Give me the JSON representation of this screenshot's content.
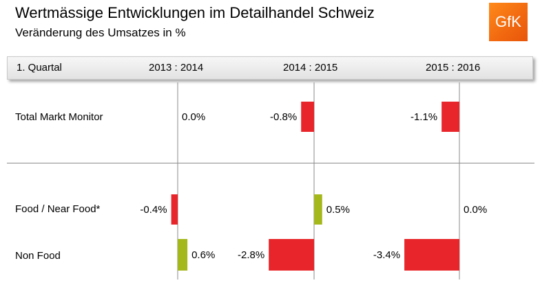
{
  "title": "Wertmässige Entwicklungen im Detailhandel Schweiz",
  "subtitle": "Veränderung des Umsatzes in %",
  "logo": {
    "text": "GfK",
    "color": "#f26a10"
  },
  "header": {
    "row_label": "1. Quartal",
    "periods": [
      "2013 : 2014",
      "2014 : 2015",
      "2015 : 2016"
    ]
  },
  "colors": {
    "negative": "#e8252a",
    "positive": "#a4b81c"
  },
  "chart_data": {
    "type": "bar",
    "orientation": "horizontal",
    "unit": "%",
    "categories": [
      "Total Markt Monitor",
      "Food / Near Food*",
      "Non Food"
    ],
    "series": [
      {
        "name": "2013 : 2014",
        "values": [
          0.0,
          -0.4,
          0.6
        ],
        "labels": [
          "0.0%",
          "-0.4%",
          "0.6%"
        ]
      },
      {
        "name": "2014 : 2015",
        "values": [
          -0.8,
          0.5,
          -2.8
        ],
        "labels": [
          "-0.8%",
          "0.5%",
          "-2.8%"
        ]
      },
      {
        "name": "2015 : 2016",
        "values": [
          -1.1,
          0.0,
          -3.4
        ],
        "labels": [
          "-1.1%",
          "0.0%",
          "-3.4%"
        ]
      }
    ]
  }
}
